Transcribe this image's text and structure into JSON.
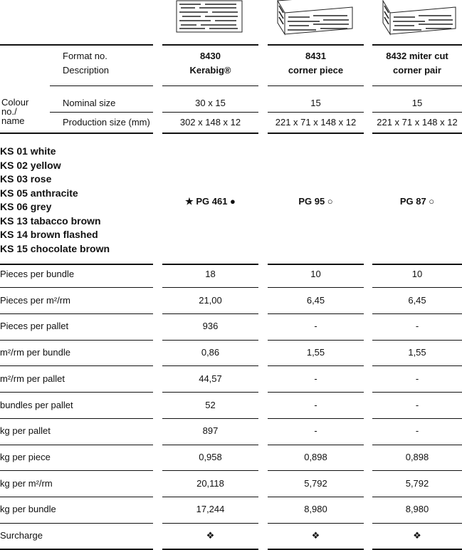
{
  "header": {
    "format_label": "Format no.",
    "description_label": "Description",
    "colour_label": "Colour no./ name",
    "nominal_label": "Nominal size",
    "production_label": "Production size (mm)"
  },
  "products": [
    {
      "format": "8430",
      "description": "Kerabig®",
      "nominal": "30 x 15",
      "production": "302 x 148 x 12",
      "price_group": "★ PG 461 ●"
    },
    {
      "format": "8431",
      "description": "corner piece",
      "nominal": "15",
      "production": "221 x 71 x 148 x 12",
      "price_group": "PG 95 ○"
    },
    {
      "format": "8432 miter cut",
      "description": "corner pair",
      "nominal": "15",
      "production": "221 x 71 x 148 x 12",
      "price_group": "PG 87 ○"
    }
  ],
  "colours": [
    "KS 01 white",
    "KS 02 yellow",
    "KS 03 rose",
    "KS 05 anthracite",
    "KS 06 grey",
    "KS 13 tabacco brown",
    "KS 14 brown flashed",
    "KS 15 chocolate brown"
  ],
  "rows": [
    {
      "label": "Pieces per bundle",
      "values": [
        "18",
        "10",
        "10"
      ]
    },
    {
      "label": "Pieces per m²/rm",
      "values": [
        "21,00",
        "6,45",
        "6,45"
      ]
    },
    {
      "label": "Pieces per pallet",
      "values": [
        "936",
        "-",
        "-"
      ]
    },
    {
      "label": "m²/rm per bundle",
      "values": [
        "0,86",
        "1,55",
        "1,55"
      ]
    },
    {
      "label": "m²/rm per pallet",
      "values": [
        "44,57",
        "-",
        "-"
      ]
    },
    {
      "label": "bundles per pallet",
      "values": [
        "52",
        "-",
        "-"
      ]
    },
    {
      "label": "kg per pallet",
      "values": [
        "897",
        "-",
        "-"
      ]
    },
    {
      "label": "kg per piece",
      "values": [
        "0,958",
        "0,898",
        "0,898"
      ]
    },
    {
      "label": "kg per m²/rm",
      "values": [
        "20,118",
        "5,792",
        "5,792"
      ]
    },
    {
      "label": "kg per bundle",
      "values": [
        "17,244",
        "8,980",
        "8,980"
      ]
    },
    {
      "label": "Surcharge",
      "values": [
        "❖",
        "❖",
        "❖"
      ]
    }
  ]
}
